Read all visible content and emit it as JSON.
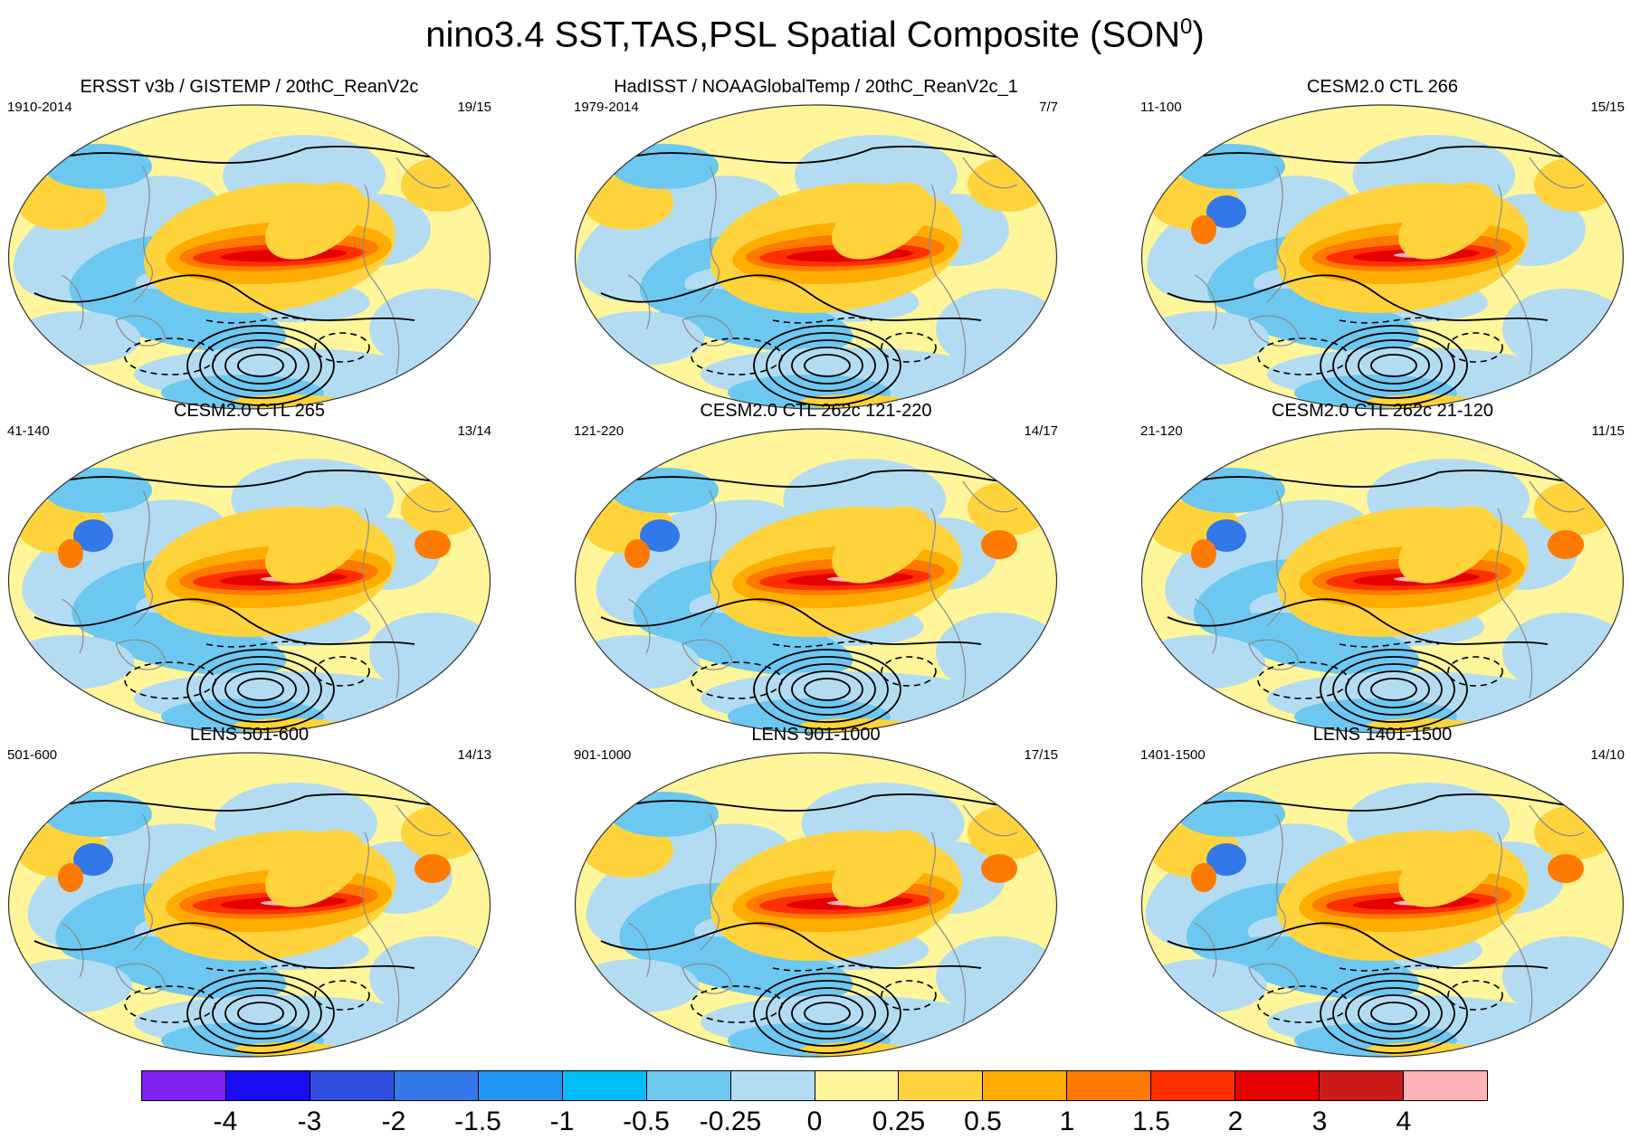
{
  "figure": {
    "title_main": "nino3.4 SST,TAS,PSL Spatial Composite (SON",
    "title_sup": "0",
    "title_end": ")"
  },
  "panels": [
    {
      "title": "ERSST v3b / GISTEMP / 20thC_ReanV2c",
      "left": "1910-2014",
      "right": "19/15"
    },
    {
      "title": "HadISST / NOAAGlobalTemp / 20thC_ReanV2c_1",
      "left": "1979-2014",
      "right": "7/7"
    },
    {
      "title": "CESM2.0 CTL 266",
      "left": "11-100",
      "right": "15/15"
    },
    {
      "title": "CESM2.0 CTL 265",
      "left": "41-140",
      "right": "13/14"
    },
    {
      "title": "CESM2.0 CTL 262c 121-220",
      "left": "121-220",
      "right": "14/17"
    },
    {
      "title": "CESM2.0 CTL 262c 21-120",
      "left": "21-120",
      "right": "11/15"
    },
    {
      "title": "LENS 501-600",
      "left": "501-600",
      "right": "14/13"
    },
    {
      "title": "LENS 901-1000",
      "left": "901-1000",
      "right": "17/15"
    },
    {
      "title": "LENS 1401-1500",
      "left": "1401-1500",
      "right": "14/10"
    }
  ],
  "colorbar": {
    "colors": [
      "#7f22f0",
      "#1a0cf2",
      "#2f4fe0",
      "#3278e8",
      "#1f96f4",
      "#00bdf5",
      "#6cc8f0",
      "#b3dcf2",
      "#fff59a",
      "#ffd33c",
      "#ffac00",
      "#ff7a00",
      "#ff2f00",
      "#e40000",
      "#cc1a1a",
      "#ffb3b8"
    ],
    "labels": [
      "-4",
      "-3",
      "-2",
      "-1.5",
      "-1",
      "-0.5",
      "-0.25",
      "0",
      "0.25",
      "0.5",
      "1",
      "1.5",
      "2",
      "3",
      "4"
    ]
  }
}
